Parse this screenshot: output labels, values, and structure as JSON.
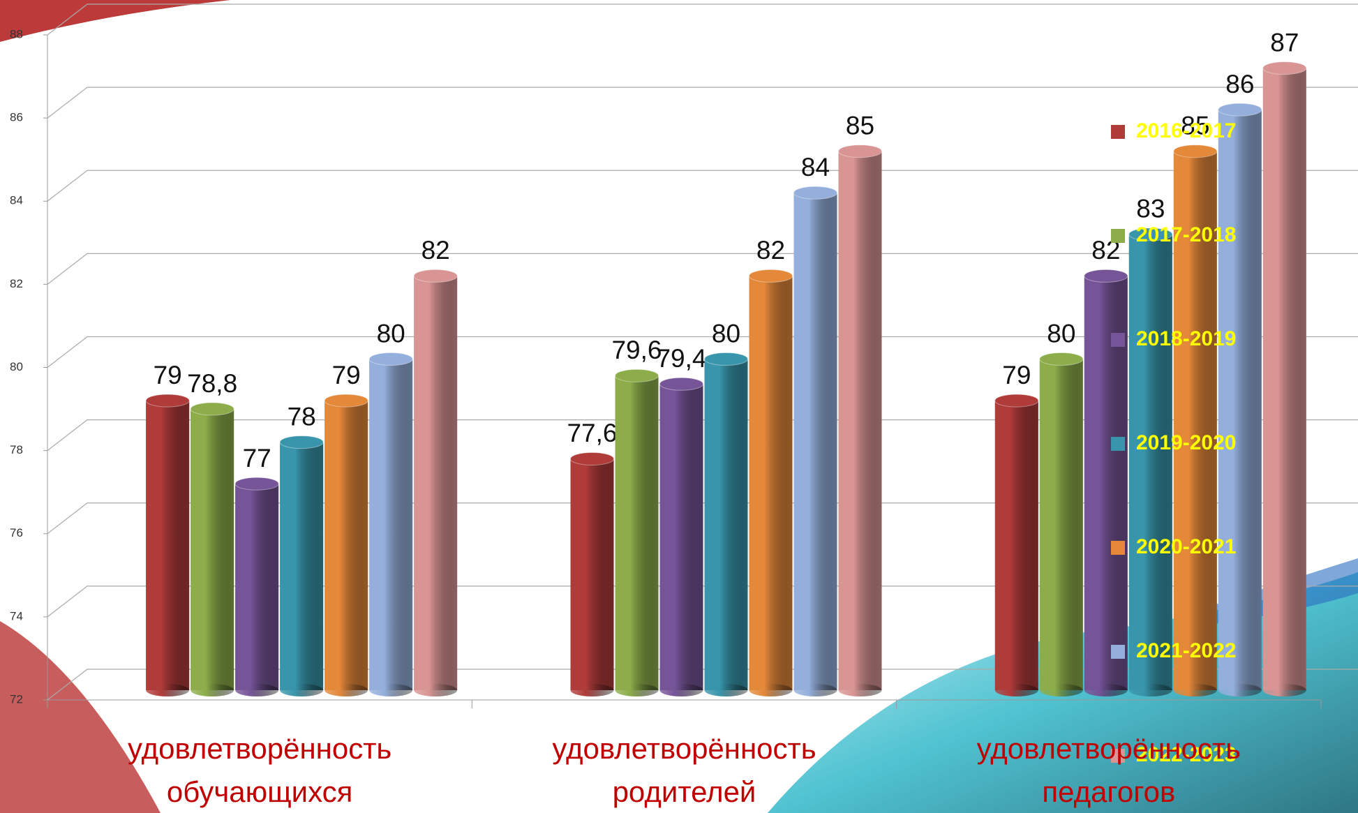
{
  "chart_data": {
    "type": "bar",
    "categories": [
      "удовлетворённость обучающихся",
      "удовлетворённость родителей",
      "удовлетворённость педагогов"
    ],
    "series": [
      {
        "name": "2016-2017",
        "color": "#b03c3a",
        "values": [
          79,
          77.6,
          79
        ],
        "value_labels": [
          "79",
          "77,6",
          "79"
        ]
      },
      {
        "name": "2017-2018",
        "color": "#8cad4a",
        "values": [
          78.8,
          79.6,
          80
        ],
        "value_labels": [
          "78,8",
          "79,6",
          "80"
        ]
      },
      {
        "name": "2018-2019",
        "color": "#755497",
        "values": [
          77,
          79.4,
          82
        ],
        "value_labels": [
          "77",
          "79,4",
          "82"
        ]
      },
      {
        "name": "2019-2020",
        "color": "#3895ab",
        "values": [
          78,
          80,
          83
        ]
      },
      {
        "name": "2020-2021",
        "color": "#e4883a",
        "values": [
          79,
          82,
          85
        ]
      },
      {
        "name": "2021-2022",
        "color": "#94afdc",
        "values": [
          80,
          84,
          86
        ]
      },
      {
        "name": "2022-2023",
        "color": "#d99494",
        "values": [
          82,
          85,
          87
        ]
      }
    ],
    "ylim": [
      72,
      88
    ],
    "yticks": [
      72,
      74,
      76,
      78,
      80,
      82,
      84,
      86,
      88
    ],
    "grid": true,
    "legend": "right"
  }
}
